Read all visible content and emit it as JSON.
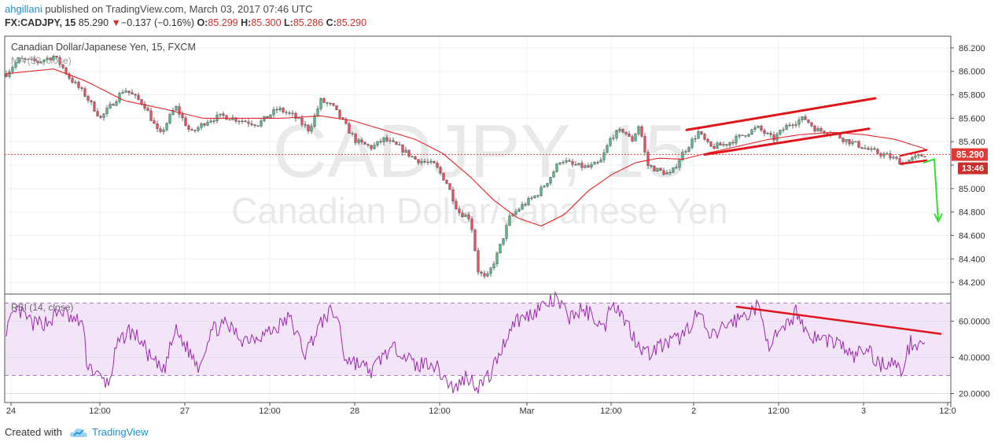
{
  "header": {
    "author": "ahgillani",
    "published_text": "published on TradingView.com, March 03, 2017 07:46 UTC",
    "symbol": "FX:CADJPY, 15",
    "last": "85.290",
    "change_arrow": "▼",
    "change": "−0.137 (−0.16%)",
    "open_label": "O:",
    "open": "85.299",
    "high_label": "H:",
    "high": "85.300",
    "low_label": "L:",
    "low": "85.286",
    "close_label": "C:",
    "close": "85.290"
  },
  "watermark": {
    "ticker": "CADJPY, 15",
    "name": "Canadian Dollar/Japanese Yen"
  },
  "footer": {
    "created_with": "Created with",
    "brand": "TradingView"
  },
  "colors": {
    "candle_up": "#53b987",
    "candle_down": "#eb4d5c",
    "candle_wick": "#444444",
    "ma": "#e3272a",
    "trendline": "#e0151b",
    "rsi_line": "#9c27b0",
    "rsi_band": "#f3e5f8",
    "forecast_arrow": "#33dd33",
    "price_tag": "#e03a36"
  },
  "chart_data": [
    {
      "type": "candlestick",
      "title": "Canadian Dollar/Japanese Yen, 15, FXCM",
      "indicator_label": "MA (50, close)",
      "ylim": [
        84.1,
        86.3
      ],
      "y_ticks": [
        "84.200",
        "84.400",
        "84.600",
        "84.800",
        "85.000",
        "85.200",
        "85.400",
        "85.600",
        "85.800",
        "86.000",
        "86.200"
      ],
      "x_ticks": [
        "24",
        "12:00",
        "27",
        "12:00",
        "28",
        "12:00",
        "Mar",
        "12:00",
        "2",
        "12:00",
        "3",
        "12:0"
      ],
      "last_price_tag": "85.290",
      "countdown_tag": "13:46",
      "series_anchors": [
        [
          0,
          85.98
        ],
        [
          15,
          86.1
        ],
        [
          40,
          86.08
        ],
        [
          60,
          86.13
        ],
        [
          70,
          86.05
        ],
        [
          80,
          85.95
        ],
        [
          100,
          85.8
        ],
        [
          120,
          85.6
        ],
        [
          150,
          85.85
        ],
        [
          175,
          85.72
        ],
        [
          195,
          85.45
        ],
        [
          215,
          85.7
        ],
        [
          235,
          85.47
        ],
        [
          255,
          85.58
        ],
        [
          275,
          85.62
        ],
        [
          300,
          85.58
        ],
        [
          320,
          85.55
        ],
        [
          345,
          85.68
        ],
        [
          365,
          85.62
        ],
        [
          385,
          85.5
        ],
        [
          400,
          85.75
        ],
        [
          415,
          85.7
        ],
        [
          430,
          85.55
        ],
        [
          445,
          85.4
        ],
        [
          465,
          85.35
        ],
        [
          480,
          85.42
        ],
        [
          500,
          85.35
        ],
        [
          520,
          85.25
        ],
        [
          545,
          85.2
        ],
        [
          560,
          85.05
        ],
        [
          575,
          84.8
        ],
        [
          590,
          84.75
        ],
        [
          600,
          84.3
        ],
        [
          610,
          84.22
        ],
        [
          625,
          84.45
        ],
        [
          640,
          84.75
        ],
        [
          655,
          84.85
        ],
        [
          675,
          84.95
        ],
        [
          690,
          85.08
        ],
        [
          705,
          85.25
        ],
        [
          720,
          85.2
        ],
        [
          740,
          85.18
        ],
        [
          755,
          85.22
        ],
        [
          770,
          85.45
        ],
        [
          785,
          85.5
        ],
        [
          795,
          85.4
        ],
        [
          805,
          85.55
        ],
        [
          815,
          85.2
        ],
        [
          830,
          85.15
        ],
        [
          845,
          85.12
        ],
        [
          860,
          85.3
        ],
        [
          880,
          85.48
        ],
        [
          895,
          85.35
        ],
        [
          915,
          85.38
        ],
        [
          935,
          85.45
        ],
        [
          955,
          85.52
        ],
        [
          975,
          85.42
        ],
        [
          995,
          85.55
        ],
        [
          1015,
          85.6
        ],
        [
          1030,
          85.5
        ],
        [
          1050,
          85.48
        ],
        [
          1065,
          85.42
        ],
        [
          1080,
          85.38
        ],
        [
          1100,
          85.32
        ],
        [
          1120,
          85.28
        ],
        [
          1140,
          85.22
        ],
        [
          1155,
          85.26
        ],
        [
          1168,
          85.29
        ]
      ],
      "ma_anchors": [
        [
          0,
          85.98
        ],
        [
          60,
          86.02
        ],
        [
          100,
          85.92
        ],
        [
          150,
          85.75
        ],
        [
          200,
          85.68
        ],
        [
          250,
          85.6
        ],
        [
          300,
          85.6
        ],
        [
          350,
          85.6
        ],
        [
          400,
          85.62
        ],
        [
          440,
          85.58
        ],
        [
          480,
          85.5
        ],
        [
          520,
          85.42
        ],
        [
          555,
          85.3
        ],
        [
          590,
          85.1
        ],
        [
          620,
          84.9
        ],
        [
          650,
          84.75
        ],
        [
          680,
          84.68
        ],
        [
          710,
          84.78
        ],
        [
          740,
          84.98
        ],
        [
          770,
          85.12
        ],
        [
          800,
          85.22
        ],
        [
          830,
          85.26
        ],
        [
          860,
          85.25
        ],
        [
          890,
          85.3
        ],
        [
          930,
          85.36
        ],
        [
          970,
          85.42
        ],
        [
          1010,
          85.46
        ],
        [
          1050,
          85.48
        ],
        [
          1090,
          85.46
        ],
        [
          1130,
          85.42
        ],
        [
          1168,
          85.34
        ]
      ],
      "channel_upper": [
        [
          865,
          85.5
        ],
        [
          1105,
          85.77
        ]
      ],
      "channel_lower": [
        [
          888,
          85.29
        ],
        [
          1097,
          85.51
        ]
      ],
      "small_channel_upper": [
        [
          1137,
          85.28
        ],
        [
          1170,
          85.33
        ]
      ],
      "small_channel_lower": [
        [
          1137,
          85.21
        ],
        [
          1170,
          85.24
        ]
      ],
      "forecast_path": [
        [
          1166,
          85.22
        ],
        [
          1180,
          85.25
        ],
        [
          1185,
          84.72
        ]
      ]
    },
    {
      "type": "line",
      "title": "RSI (14, close)",
      "ylim": [
        15,
        75
      ],
      "y_ticks": [
        "20.0000",
        "40.0000",
        "60.0000"
      ],
      "band": [
        30,
        70
      ],
      "series_anchors": [
        [
          0,
          56
        ],
        [
          15,
          66
        ],
        [
          35,
          58
        ],
        [
          55,
          60
        ],
        [
          70,
          66
        ],
        [
          85,
          60
        ],
        [
          97,
          60
        ],
        [
          102,
          38
        ],
        [
          115,
          30
        ],
        [
          130,
          25
        ],
        [
          140,
          45
        ],
        [
          155,
          55
        ],
        [
          170,
          50
        ],
        [
          185,
          38
        ],
        [
          200,
          32
        ],
        [
          215,
          55
        ],
        [
          230,
          45
        ],
        [
          245,
          35
        ],
        [
          260,
          55
        ],
        [
          280,
          58
        ],
        [
          300,
          50
        ],
        [
          320,
          52
        ],
        [
          340,
          55
        ],
        [
          360,
          62
        ],
        [
          380,
          42
        ],
        [
          395,
          55
        ],
        [
          410,
          65
        ],
        [
          422,
          62
        ],
        [
          430,
          40
        ],
        [
          450,
          36
        ],
        [
          465,
          32
        ],
        [
          480,
          42
        ],
        [
          500,
          45
        ],
        [
          520,
          35
        ],
        [
          540,
          38
        ],
        [
          555,
          30
        ],
        [
          570,
          22
        ],
        [
          585,
          30
        ],
        [
          600,
          24
        ],
        [
          615,
          30
        ],
        [
          630,
          45
        ],
        [
          645,
          60
        ],
        [
          660,
          62
        ],
        [
          680,
          68
        ],
        [
          700,
          72
        ],
        [
          715,
          62
        ],
        [
          730,
          66
        ],
        [
          745,
          64
        ],
        [
          760,
          55
        ],
        [
          770,
          72
        ],
        [
          785,
          62
        ],
        [
          800,
          50
        ],
        [
          815,
          42
        ],
        [
          830,
          46
        ],
        [
          845,
          48
        ],
        [
          860,
          52
        ],
        [
          880,
          65
        ],
        [
          895,
          50
        ],
        [
          915,
          58
        ],
        [
          935,
          62
        ],
        [
          955,
          68
        ],
        [
          970,
          48
        ],
        [
          990,
          55
        ],
        [
          1005,
          66
        ],
        [
          1020,
          52
        ],
        [
          1040,
          50
        ],
        [
          1060,
          48
        ],
        [
          1075,
          40
        ],
        [
          1095,
          45
        ],
        [
          1110,
          36
        ],
        [
          1125,
          38
        ],
        [
          1138,
          32
        ],
        [
          1150,
          48
        ],
        [
          1168,
          48
        ]
      ],
      "trendline": [
        [
          929,
          68
        ],
        [
          1188,
          53
        ]
      ]
    }
  ]
}
